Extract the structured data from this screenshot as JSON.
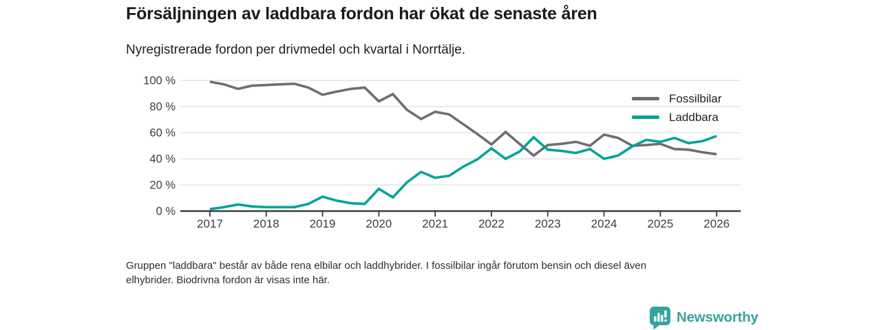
{
  "header": {
    "title": "Försäljningen av laddbara fordon har ökat de senaste åren",
    "subtitle": "Nyregistrerade fordon per drivmedel och kvartal i Norrtälje."
  },
  "chart_data": {
    "type": "line",
    "x_unit": "quarter",
    "x_start_label": "2017 Q1",
    "x_end_label": "2026 Q1",
    "x_tick_labels": [
      "2017",
      "2018",
      "2019",
      "2020",
      "2021",
      "2022",
      "2023",
      "2024",
      "2025",
      "2026"
    ],
    "y_tick_labels": [
      "0 %",
      "20 %",
      "40 %",
      "60 %",
      "80 %",
      "100 %"
    ],
    "ylim": [
      0,
      100
    ],
    "grid": "horizontal",
    "legend_position": "top-right",
    "series": [
      {
        "name": "Fossilbilar",
        "color": "#6d6d74",
        "values": [
          99,
          97,
          93.5,
          96,
          96.5,
          97,
          97.5,
          94.5,
          89,
          91.5,
          93.5,
          94.5,
          84,
          89.5,
          77.5,
          70.5,
          76,
          74,
          66.5,
          59,
          51,
          60.5,
          51.5,
          42.5,
          50.5,
          51.5,
          53,
          50,
          58.5,
          56,
          50,
          50.5,
          51.5,
          47.5,
          47,
          45,
          43.5
        ]
      },
      {
        "name": "Laddbara",
        "color": "#00a399",
        "values": [
          1.5,
          3,
          5,
          3.5,
          3,
          3,
          3,
          5.5,
          11,
          8,
          6,
          5.5,
          17,
          10.5,
          22,
          30,
          25.5,
          27,
          34,
          39.5,
          48,
          40,
          45.5,
          56.5,
          47,
          46,
          44.5,
          47.5,
          40,
          42.5,
          49.5,
          54.5,
          53,
          56,
          52,
          53.5,
          57.5
        ]
      }
    ]
  },
  "footnote": {
    "line1": "Gruppen \"laddbara\" består av både rena elbilar och laddhybrider. I fossilbilar ingår förutom bensin och diesel även",
    "line2": "elhybrider. Biodrivna fordon är visas inte här."
  },
  "logo": {
    "text": "Newsworthy",
    "color": "#3ba19e",
    "icon_color": "#35a4a0"
  }
}
